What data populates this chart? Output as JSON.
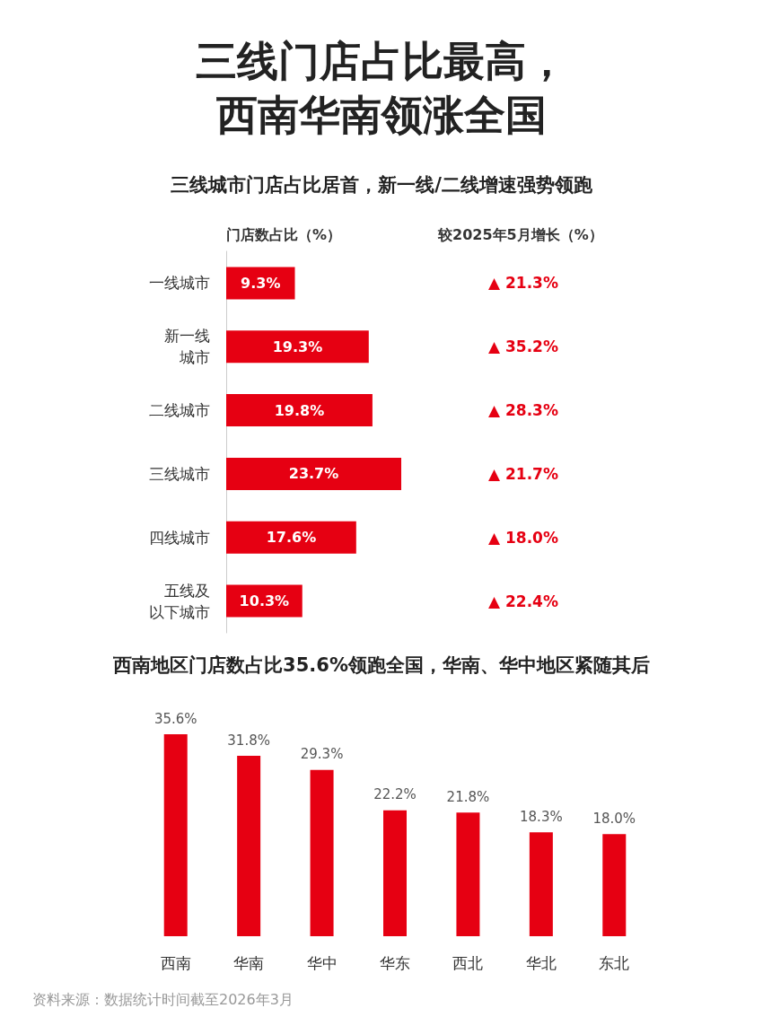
{
  "chart_data": [
    {
      "type": "bar",
      "orientation": "horizontal",
      "title": "三线门店占比最高，西南华南领涨全国",
      "subtitle": "三线城市门店占比居首，新一线/二线增速强势领跑",
      "xlabel": "门店数占比（%）",
      "categories": [
        "一线城市",
        "新一线城市",
        "二线城市",
        "三线城市",
        "四线城市",
        "五线及以下城市"
      ],
      "values": [
        9.3,
        19.3,
        19.8,
        23.7,
        17.6,
        10.3
      ],
      "color": "#e60012",
      "value_labels": [
        "9.3%",
        "19.3%",
        "19.8%",
        "23.7%",
        "17.6%",
        "10.3%"
      ],
      "annotations": [
        "较2025年5月增长（%）",
        "▲ 21.3%",
        "▲ 35.2%",
        "▲ 28.3%",
        "▲ 21.7%",
        "▲ 18.0%",
        "▲ 22.4%"
      ]
    },
    {
      "type": "bar",
      "title": "西南地区门店数占比35.6%领跑全国，华南、华中地区紧随其后",
      "categories": [
        "西南",
        "华南",
        "华中",
        "华东",
        "西北",
        "华北",
        "东北"
      ],
      "values": [
        35.6,
        31.8,
        29.3,
        22.2,
        21.8,
        18.3,
        18.0
      ],
      "color": "#e60012",
      "value_labels": [
        "35.6%",
        "31.8%",
        "29.3%",
        "22.2%",
        "21.8%",
        "18.3%",
        "18.0%"
      ],
      "annotations": [
        "资料来源：数据统计时间截至2026年3月"
      ]
    }
  ]
}
